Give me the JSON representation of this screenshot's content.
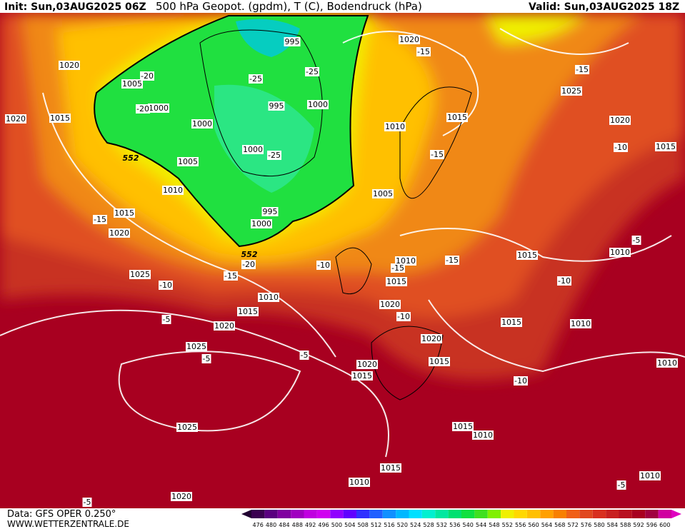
{
  "header": {
    "init": "Init: Sun,03AUG2025 06Z",
    "title": "500 hPa Geopot. (gpdm), T (C), Bodendruck (hPa)",
    "valid": "Valid: Sun,03AUG2025 18Z"
  },
  "footer": {
    "data": "Data: GFS OPER 0.250°",
    "site": "WWW.WETTERZENTRALE.DE"
  },
  "map": {
    "pressure_labels": [
      "1020",
      "1005",
      "1000",
      "1015",
      "1020",
      "1000",
      "1005",
      "1010",
      "1015",
      "1020",
      "995",
      "995",
      "1000",
      "1000",
      "995",
      "1000",
      "1020",
      "1010",
      "1015",
      "1025",
      "1020",
      "1015",
      "1005",
      "1010",
      "1015",
      "1015",
      "1010",
      "1025",
      "1010",
      "1015",
      "1020",
      "1020",
      "1015",
      "1010",
      "1020",
      "1015",
      "1025",
      "1020",
      "1015",
      "1010",
      "1025",
      "1015",
      "1010",
      "1015",
      "1010",
      "1010",
      "1020"
    ],
    "temperature_labels": [
      "-20",
      "-25",
      "-25",
      "-20",
      "-15",
      "-15",
      "-25",
      "-15",
      "-10",
      "-15",
      "-20",
      "-15",
      "-10",
      "-10",
      "-15",
      "-15",
      "-10",
      "-5",
      "-10",
      "-5",
      "-5",
      "-10",
      "-5",
      "-5",
      "-5"
    ],
    "height_labels": [
      "552",
      "552"
    ]
  },
  "colorbar": {
    "ticks": [
      476,
      480,
      484,
      488,
      492,
      496,
      500,
      504,
      508,
      512,
      516,
      520,
      524,
      528,
      532,
      536,
      540,
      544,
      548,
      552,
      556,
      560,
      564,
      568,
      572,
      576,
      580,
      584,
      588,
      592,
      596,
      600
    ],
    "colors": [
      "#3a0050",
      "#5a0080",
      "#8000a0",
      "#a000c0",
      "#c000e0",
      "#d000f0",
      "#9000ff",
      "#6000ff",
      "#3030ff",
      "#2060ff",
      "#1090ff",
      "#00b8ff",
      "#00e0ff",
      "#00f0d0",
      "#00e8a0",
      "#00e070",
      "#10e040",
      "#40e020",
      "#80f000",
      "#f0f000",
      "#ffd800",
      "#ffc000",
      "#ffa000",
      "#f88000",
      "#f06018",
      "#e04820",
      "#d83020",
      "#c82020",
      "#b81020",
      "#a80020",
      "#a00040",
      "#d000a0"
    ]
  }
}
